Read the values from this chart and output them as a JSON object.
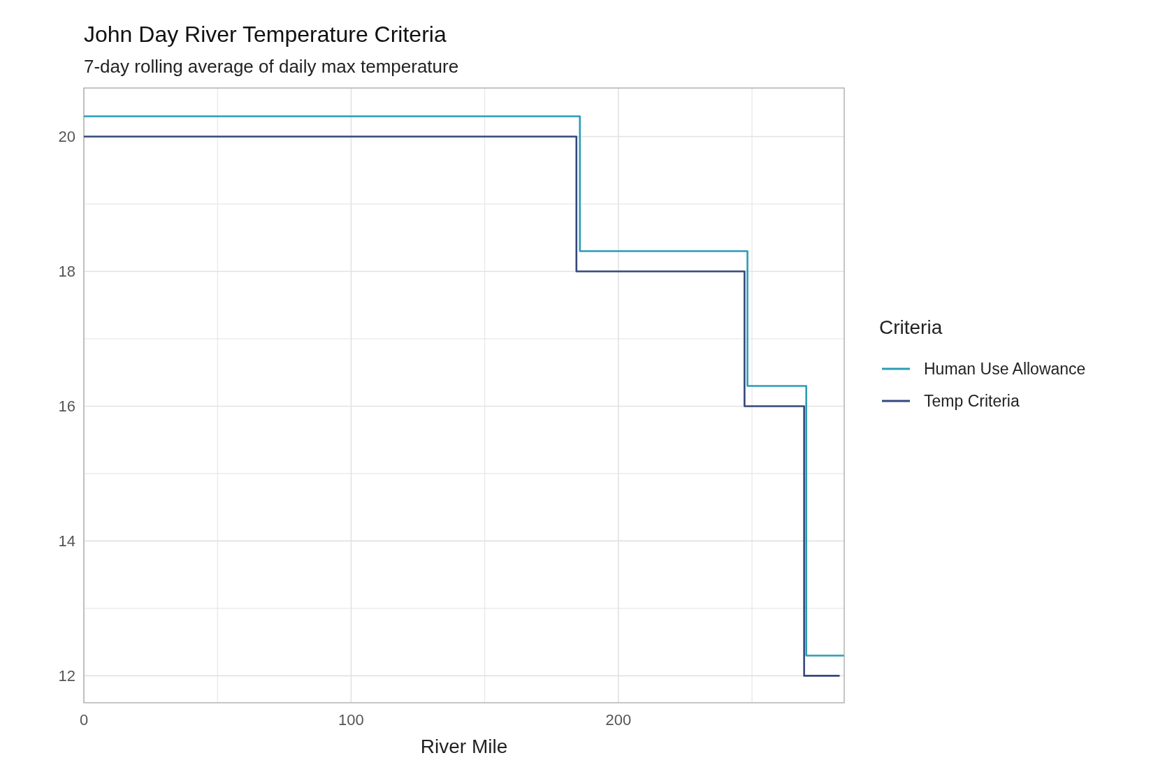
{
  "chart_data": {
    "type": "step",
    "title": "John Day River Temperature Criteria",
    "subtitle": "7-day rolling average of daily max temperature",
    "xlabel": "River Mile",
    "legend_title": "Criteria",
    "legend": "right",
    "grid": true,
    "xlim": [
      0,
      284.5
    ],
    "ylim": [
      11.6,
      20.72
    ],
    "xticks": [
      0,
      {
        "value": 50,
        "label": null
      },
      100,
      {
        "value": 150,
        "label": null
      },
      200,
      {
        "value": 250,
        "label": null
      }
    ],
    "yticks": [
      12,
      {
        "value": 13,
        "label": null
      },
      14,
      {
        "value": 15,
        "label": null
      },
      16,
      {
        "value": 17,
        "label": null
      },
      18,
      {
        "value": 19,
        "label": null
      },
      20
    ],
    "series": [
      {
        "name": "Human Use Allowance",
        "color": "#2a9db5",
        "x": [
          0,
          185.6,
          248.3,
          270.3,
          284.4
        ],
        "values": [
          20.3,
          18.3,
          16.3,
          12.3,
          12.3
        ]
      },
      {
        "name": "Temp Criteria",
        "color": "#34487a",
        "x": [
          0,
          184.3,
          247.2,
          269.5,
          282.8
        ],
        "values": [
          20,
          18,
          16,
          12,
          12
        ]
      }
    ]
  }
}
